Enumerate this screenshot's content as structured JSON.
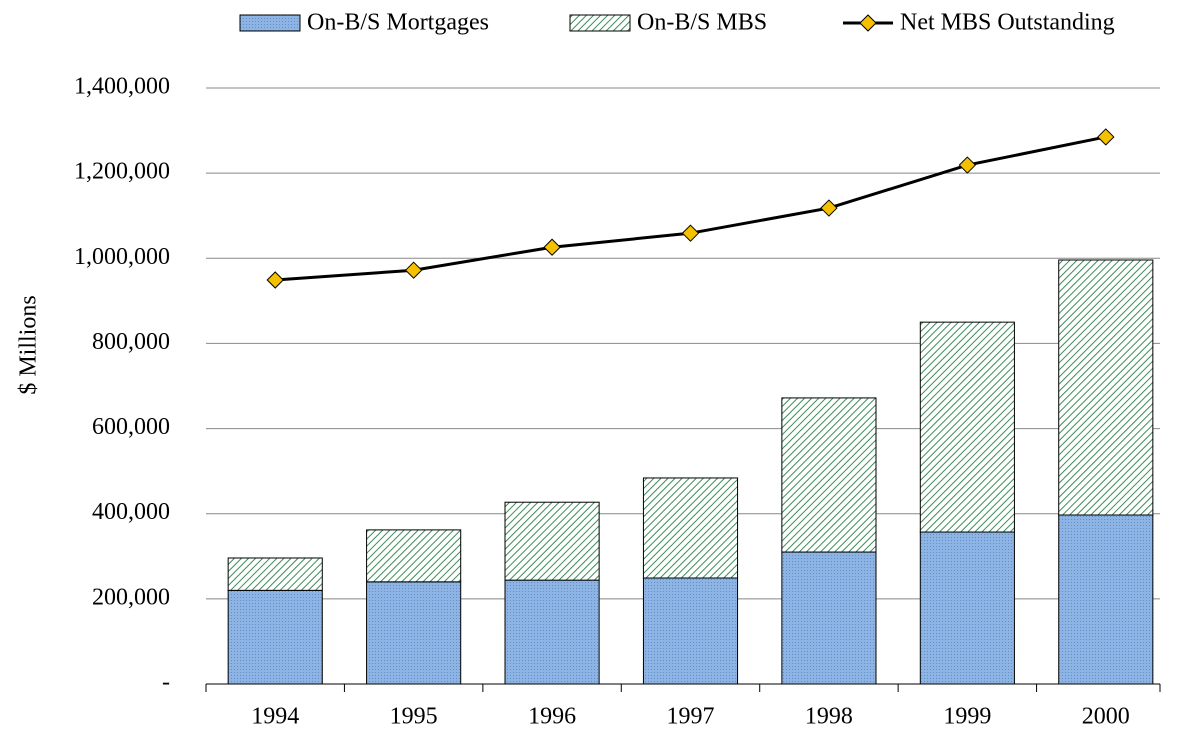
{
  "chart_data": {
    "type": "bar",
    "stacked": true,
    "y_label": "$ Millions",
    "categories": [
      "1994",
      "1995",
      "1996",
      "1997",
      "1998",
      "1999",
      "2000"
    ],
    "series": [
      {
        "name": "On-B/S Mortgages",
        "type": "bar",
        "color": "#8db4e2",
        "values": [
          220000,
          240000,
          244000,
          249000,
          310000,
          357000,
          397000
        ]
      },
      {
        "name": "On-B/S MBS",
        "type": "bar",
        "color": "#3c8c5a",
        "values": [
          76000,
          122000,
          183000,
          235000,
          362000,
          493000,
          599000
        ]
      },
      {
        "name": "Net MBS Outstanding",
        "type": "line",
        "color": "#000000",
        "marker_color": "#f5c000",
        "values": [
          949000,
          972000,
          1026000,
          1059000,
          1118000,
          1219000,
          1285000
        ]
      }
    ],
    "ylim": [
      0,
      1400000
    ],
    "yticks": [
      {
        "value": 0,
        "label": "-"
      },
      {
        "value": 200000,
        "label": "200,000"
      },
      {
        "value": 400000,
        "label": "400,000"
      },
      {
        "value": 600000,
        "label": "600,000"
      },
      {
        "value": 800000,
        "label": "800,000"
      },
      {
        "value": 1000000,
        "label": "1,000,000"
      },
      {
        "value": 1200000,
        "label": "1,200,000"
      },
      {
        "value": 1400000,
        "label": "1,400,000"
      }
    ],
    "grid": true,
    "legend": "top"
  }
}
